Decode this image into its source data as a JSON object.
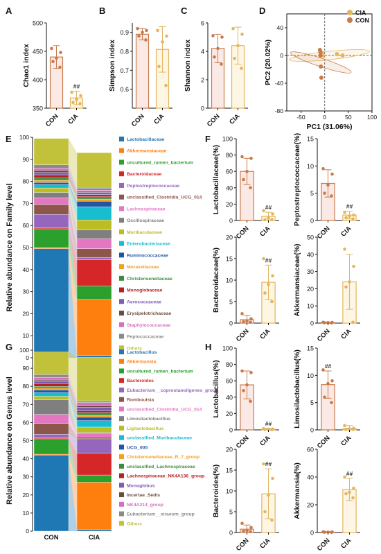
{
  "colors": {
    "con": "#c87a4a",
    "cia": "#e3b55e",
    "con_fill": "#fbe9e6",
    "cia_fill": "#fdf6e4",
    "sig": "#333333"
  },
  "groups": [
    "CON",
    "CIA"
  ],
  "panel_labels": [
    "A",
    "B",
    "C",
    "D",
    "E",
    "F",
    "G",
    "H"
  ],
  "chart_data": [
    {
      "id": "A",
      "type": "bar",
      "ylabel": "Chao1 index",
      "ylim": [
        350,
        500
      ],
      "yticks": [
        350,
        400,
        450,
        500
      ],
      "categories": [
        "CON",
        "CIA"
      ],
      "means": [
        440,
        368
      ],
      "sd": [
        20,
        12
      ],
      "points": [
        [
          455,
          448,
          438,
          432,
          422
        ],
        [
          378,
          372,
          365,
          360,
          358
        ]
      ],
      "sig": [
        "",
        "##"
      ]
    },
    {
      "id": "B",
      "type": "bar",
      "ylabel": "Simpson index",
      "ylim": [
        0.5,
        0.95
      ],
      "yticks": [
        0.6,
        0.7,
        0.8,
        0.9
      ],
      "categories": [
        "CON",
        "CIA"
      ],
      "means": [
        0.89,
        0.81
      ],
      "sd": [
        0.03,
        0.12
      ],
      "points": [
        [
          0.92,
          0.91,
          0.9,
          0.88,
          0.86
        ],
        [
          0.91,
          0.88,
          0.85,
          0.72,
          0.62
        ]
      ],
      "sig": [
        "",
        ""
      ]
    },
    {
      "id": "C",
      "type": "bar",
      "ylabel": "Shannon index",
      "ylim": [
        0,
        6
      ],
      "yticks": [
        0,
        2,
        4,
        6
      ],
      "categories": [
        "CON",
        "CIA"
      ],
      "means": [
        4.2,
        4.4
      ],
      "sd": [
        1.0,
        1.3
      ],
      "points": [
        [
          5.1,
          5.0,
          4.2,
          3.6,
          3.1
        ],
        [
          5.6,
          5.2,
          4.4,
          3.5,
          2.8
        ]
      ],
      "sig": [
        "",
        ""
      ]
    },
    {
      "id": "D",
      "type": "scatter",
      "xlabel": "PC1 (31.06%)",
      "ylabel": "PC2 (20.02%)",
      "xlim": [
        -80,
        100
      ],
      "ylim": [
        -80,
        60
      ],
      "xticks": [
        -50,
        0,
        50,
        100
      ],
      "yticks": [
        -80,
        -40,
        0,
        40
      ],
      "legend": [
        "CIA",
        "CON"
      ],
      "series": [
        {
          "name": "CIA",
          "points": [
            [
              -8,
              2
            ],
            [
              -6,
              4
            ],
            [
              -4,
              0
            ],
            [
              26,
              2
            ],
            [
              38,
              0
            ]
          ]
        },
        {
          "name": "CON",
          "points": [
            [
              -10,
              8
            ],
            [
              -9,
              5
            ],
            [
              -8,
              -16
            ],
            [
              -7,
              -32
            ],
            [
              -9,
              0
            ]
          ]
        }
      ]
    },
    {
      "id": "E",
      "type": "stacked-bar",
      "ylabel": "Relative abundance on Family level",
      "ylim": [
        0,
        100
      ],
      "yticks": [
        0,
        10,
        20,
        30,
        40,
        50,
        60,
        70,
        80,
        90,
        100
      ],
      "categories": [
        "CON",
        "CIA"
      ],
      "series": [
        {
          "name": "Lactobacillaceae",
          "color": "#1f77b4",
          "values": [
            49.5,
            1
          ]
        },
        {
          "name": "Akkermansiaceae",
          "color": "#ff7f0e",
          "values": [
            0.5,
            25.5
          ]
        },
        {
          "name": "uncultured_rumen_bacterium",
          "color": "#2ca02c",
          "values": [
            8.5,
            6
          ]
        },
        {
          "name": "Bacteroidaceae",
          "color": "#d62728",
          "values": [
            0.5,
            12
          ]
        },
        {
          "name": "Peptostreptococcaceae",
          "color": "#9467bd",
          "values": [
            6,
            1
          ]
        },
        {
          "name": "unclassified_Clostridia_UCG_014",
          "color": "#8c564b",
          "values": [
            4.5,
            4
          ]
        },
        {
          "name": "Lachnospiraceae",
          "color": "#e377c2",
          "values": [
            3,
            4.5
          ]
        },
        {
          "name": "Oscillospiraceae",
          "color": "#7f7f7f",
          "values": [
            2.5,
            4
          ]
        },
        {
          "name": "Muribaculaceae",
          "color": "#bcbd22",
          "values": [
            2,
            4.5
          ]
        },
        {
          "name": "Enterobacteriaceae",
          "color": "#17becf",
          "values": [
            1.5,
            6
          ]
        },
        {
          "name": "Ruminococcaceae",
          "color": "#2156a5",
          "values": [
            1,
            2.5
          ]
        },
        {
          "name": "Moraxellaceae",
          "color": "#f4a020",
          "values": [
            1,
            1
          ]
        },
        {
          "name": "Christensenellaceae",
          "color": "#3a8d3a",
          "values": [
            1,
            1
          ]
        },
        {
          "name": "Monoglobaceae",
          "color": "#b22222",
          "values": [
            1.5,
            1
          ]
        },
        {
          "name": "Aerococcaceae",
          "color": "#7b5bb5",
          "values": [
            1,
            1
          ]
        },
        {
          "name": "Erysipelotrichaceae",
          "color": "#6d4c3d",
          "values": [
            1,
            0.5
          ]
        },
        {
          "name": "Staphylococcaceae",
          "color": "#d66fc0",
          "values": [
            1,
            0.5
          ]
        },
        {
          "name": "Peptococcaceae",
          "color": "#8a8a8a",
          "values": [
            1.5,
            1
          ]
        },
        {
          "name": "Others",
          "color": "#c2c23a",
          "values": [
            12,
            16
          ]
        }
      ]
    },
    {
      "id": "F1",
      "type": "bar",
      "ylabel": "Lactobacillaceae(%)",
      "ylim": [
        0,
        100
      ],
      "yticks": [
        0,
        20,
        40,
        60,
        80,
        100
      ],
      "categories": [
        "CON",
        "CIA"
      ],
      "means": [
        60,
        5
      ],
      "sd": [
        16,
        5
      ],
      "points": [
        [
          78,
          76,
          60,
          50,
          40
        ],
        [
          12,
          8,
          3,
          1,
          1
        ]
      ],
      "sig": [
        "",
        "##"
      ]
    },
    {
      "id": "F2",
      "type": "bar",
      "ylabel": "Peptostreptococcaceae(%)",
      "ylim": [
        0,
        15
      ],
      "yticks": [
        0,
        5,
        10,
        15
      ],
      "categories": [
        "CON",
        "CIA"
      ],
      "means": [
        6.8,
        1.0
      ],
      "sd": [
        2.5,
        0.7
      ],
      "points": [
        [
          9.5,
          8.5,
          6.5,
          5.0,
          4.5
        ],
        [
          1.5,
          1.0,
          0.8,
          0.5,
          0.3
        ]
      ],
      "sig": [
        "",
        "##"
      ]
    },
    {
      "id": "F3",
      "type": "bar",
      "ylabel": "Bacteroidaceae(%)",
      "ylim": [
        0,
        20
      ],
      "yticks": [
        0,
        5,
        10,
        15,
        20
      ],
      "categories": [
        "CON",
        "CIA"
      ],
      "means": [
        0.8,
        9.5
      ],
      "sd": [
        1.0,
        4.0
      ],
      "points": [
        [
          2.2,
          1.0,
          0.5,
          0.3,
          0.2
        ],
        [
          15,
          11,
          9,
          7,
          5
        ]
      ],
      "sig": [
        "",
        "##"
      ]
    },
    {
      "id": "F4",
      "type": "bar",
      "ylabel": "Akkermansiaceae(%)",
      "ylim": [
        0,
        50
      ],
      "yticks": [
        0,
        10,
        20,
        30,
        40,
        50
      ],
      "categories": [
        "CON",
        "CIA"
      ],
      "means": [
        0.3,
        24
      ],
      "sd": [
        0.3,
        16
      ],
      "points": [
        [
          0.5,
          0.4,
          0.3,
          0.2,
          0.1
        ],
        [
          43,
          33,
          24,
          21,
          0.5
        ]
      ],
      "sig": [
        "",
        ""
      ]
    },
    {
      "id": "G",
      "type": "stacked-bar",
      "ylabel": "Relative abundance on Genus level",
      "ylim": [
        0,
        100
      ],
      "yticks": [
        0,
        10,
        20,
        30,
        40,
        50,
        60,
        70,
        80,
        90,
        100
      ],
      "categories": [
        "CON",
        "CIA"
      ],
      "series": [
        {
          "name": "Lactobacillus",
          "color": "#1f77b4",
          "values": [
            42,
            1
          ]
        },
        {
          "name": "Akkermansia",
          "color": "#ff7f0e",
          "values": [
            0.5,
            26
          ]
        },
        {
          "name": "uncultured_rumen_bacterium",
          "color": "#2ca02c",
          "values": [
            8.5,
            4
          ]
        },
        {
          "name": "Bacteroides",
          "color": "#d62728",
          "values": [
            0.5,
            12
          ]
        },
        {
          "name": "Eubacterium__coprostanoligenes_group",
          "color": "#9467bd",
          "values": [
            2,
            8
          ]
        },
        {
          "name": "Romboutsia",
          "color": "#8c564b",
          "values": [
            6,
            1
          ]
        },
        {
          "name": "unclassified_Clostridia_UCG_014",
          "color": "#e377c2",
          "values": [
            5,
            2
          ]
        },
        {
          "name": "Limosilactobacillus",
          "color": "#7f7f7f",
          "values": [
            8,
            0.5
          ]
        },
        {
          "name": "Ligilactobacillus",
          "color": "#bcbd22",
          "values": [
            2,
            3
          ]
        },
        {
          "name": "unclassified_Muribaculaceae",
          "color": "#17becf",
          "values": [
            2,
            3.5
          ]
        },
        {
          "name": "UCG_005",
          "color": "#2156a5",
          "values": [
            1.5,
            2
          ]
        },
        {
          "name": "Christensenellaceae_R_7_group",
          "color": "#f4a020",
          "values": [
            1,
            1
          ]
        },
        {
          "name": "unclassified_Lachnospiraceae",
          "color": "#3a8d3a",
          "values": [
            1,
            1.5
          ]
        },
        {
          "name": "Lachnospiraceae_NK4A136_group",
          "color": "#b22222",
          "values": [
            1.5,
            1
          ]
        },
        {
          "name": "Monoglobus",
          "color": "#7b5bb5",
          "values": [
            1,
            2
          ]
        },
        {
          "name": "Incertae_Sedis",
          "color": "#6d4c3d",
          "values": [
            1,
            1
          ]
        },
        {
          "name": "NK4A214_group",
          "color": "#d66fc0",
          "values": [
            1.5,
            1.5
          ]
        },
        {
          "name": "Eubacterium__siraeum_group",
          "color": "#8a8a8a",
          "values": [
            1.5,
            1
          ]
        },
        {
          "name": "Others",
          "color": "#c2c23a",
          "values": [
            12.5,
            24
          ]
        }
      ]
    },
    {
      "id": "H1",
      "type": "bar",
      "ylabel": "Lactobacillus(%)",
      "ylim": [
        0,
        100
      ],
      "yticks": [
        0,
        20,
        40,
        60,
        80,
        100
      ],
      "categories": [
        "CON",
        "CIA"
      ],
      "means": [
        55,
        1
      ],
      "sd": [
        17,
        0.7
      ],
      "points": [
        [
          72,
          70,
          55,
          48,
          35
        ],
        [
          1.5,
          1.0,
          0.8,
          0.5,
          0.3
        ]
      ],
      "sig": [
        "",
        "##"
      ]
    },
    {
      "id": "H2",
      "type": "bar",
      "ylabel": "Limosilactobacillus(%)",
      "ylim": [
        0,
        15
      ],
      "yticks": [
        0,
        5,
        10,
        15
      ],
      "categories": [
        "CON",
        "CIA"
      ],
      "means": [
        8.3,
        0.3
      ],
      "sd": [
        2.5,
        0.5
      ],
      "points": [
        [
          11,
          9,
          8.5,
          6,
          5
        ],
        [
          0.8,
          0.3,
          0.2,
          0.1,
          0.1
        ]
      ],
      "sig": [
        "##",
        ""
      ]
    },
    {
      "id": "H3",
      "type": "bar",
      "ylabel": "Bacteroides(%)",
      "ylim": [
        0,
        20
      ],
      "yticks": [
        0,
        5,
        10,
        15,
        20
      ],
      "categories": [
        "CON",
        "CIA"
      ],
      "means": [
        0.8,
        9.3
      ],
      "sd": [
        1.0,
        6.0
      ],
      "points": [
        [
          2.2,
          1.2,
          0.5,
          0.3,
          0.2
        ],
        [
          16.5,
          13,
          9,
          5,
          3
        ]
      ],
      "sig": [
        "",
        "##"
      ]
    },
    {
      "id": "H4",
      "type": "bar",
      "ylabel": "Akkermansia(%)",
      "ylim": [
        0,
        60
      ],
      "yticks": [
        0,
        20,
        40,
        60
      ],
      "categories": [
        "CON",
        "CIA"
      ],
      "means": [
        0.3,
        31
      ],
      "sd": [
        0.3,
        8
      ],
      "points": [
        [
          0.5,
          0.4,
          0.3,
          0.2,
          0.1
        ],
        [
          40,
          32,
          29,
          28,
          25
        ]
      ],
      "sig": [
        "",
        "##"
      ]
    }
  ]
}
